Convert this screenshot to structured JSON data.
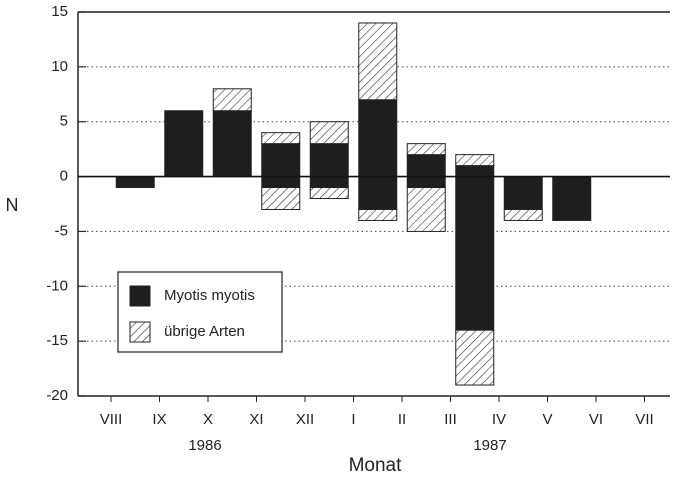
{
  "chart_data": {
    "type": "bar",
    "stacked": true,
    "x_label": "Monat",
    "y_label": "N",
    "month_labels": [
      "VIII",
      "IX",
      "X",
      "XI",
      "XII",
      "I",
      "II",
      "III",
      "IV",
      "V",
      "VI",
      "VII"
    ],
    "year_labels": [
      "1986",
      "1987"
    ],
    "categories": [
      null,
      null,
      null,
      null,
      null,
      null,
      null,
      null,
      null,
      null,
      null
    ],
    "series": [
      {
        "name": "Myotis myotis",
        "color": "#1e1e1e",
        "hatch": false,
        "values": [
          null,
          6,
          6,
          3,
          3,
          7,
          2,
          1,
          null,
          null,
          null
        ],
        "negative_values": [
          -1,
          null,
          null,
          -1,
          -1,
          -3,
          -1,
          -14,
          -3,
          -4,
          null
        ]
      },
      {
        "name": "übrige Arten",
        "color": "#ffffff",
        "hatch": true,
        "values": [
          null,
          null,
          2,
          1,
          2,
          7,
          1,
          1,
          null,
          null,
          null
        ],
        "negative_values": [
          null,
          null,
          null,
          -2,
          -1,
          -1,
          -4,
          -5,
          -1,
          null,
          null
        ]
      }
    ],
    "ylim": [
      -20,
      15
    ],
    "yticks": [
      -20,
      -15,
      -10,
      -5,
      0,
      5,
      10,
      15
    ],
    "grid": true
  }
}
